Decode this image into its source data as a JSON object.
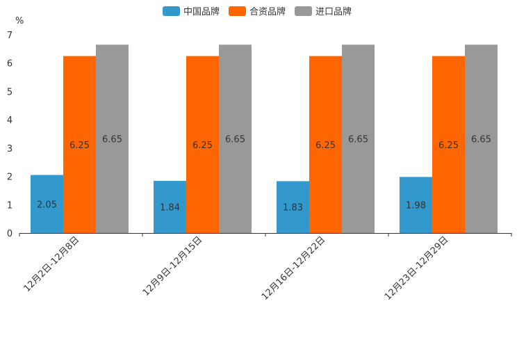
{
  "chart_data": {
    "type": "bar",
    "title": "",
    "xlabel": "",
    "ylabel": "",
    "unit_label": "%",
    "ylim": [
      0,
      7
    ],
    "yticks": [
      0,
      1,
      2,
      3,
      4,
      5,
      6,
      7
    ],
    "grid": false,
    "legend_position": "top-center",
    "categories": [
      "12月2日-12月8日",
      "12月9日-12月15日",
      "12月16日-12月22日",
      "12月23日-12月29日"
    ],
    "series": [
      {
        "name": "中国品牌",
        "color": "#3399cc",
        "values": [
          2.05,
          1.84,
          1.83,
          1.98
        ]
      },
      {
        "name": "合资品牌",
        "color": "#ff6600",
        "values": [
          6.25,
          6.25,
          6.25,
          6.25
        ]
      },
      {
        "name": "进口品牌",
        "color": "#999999",
        "values": [
          6.65,
          6.65,
          6.65,
          6.65
        ]
      }
    ]
  }
}
